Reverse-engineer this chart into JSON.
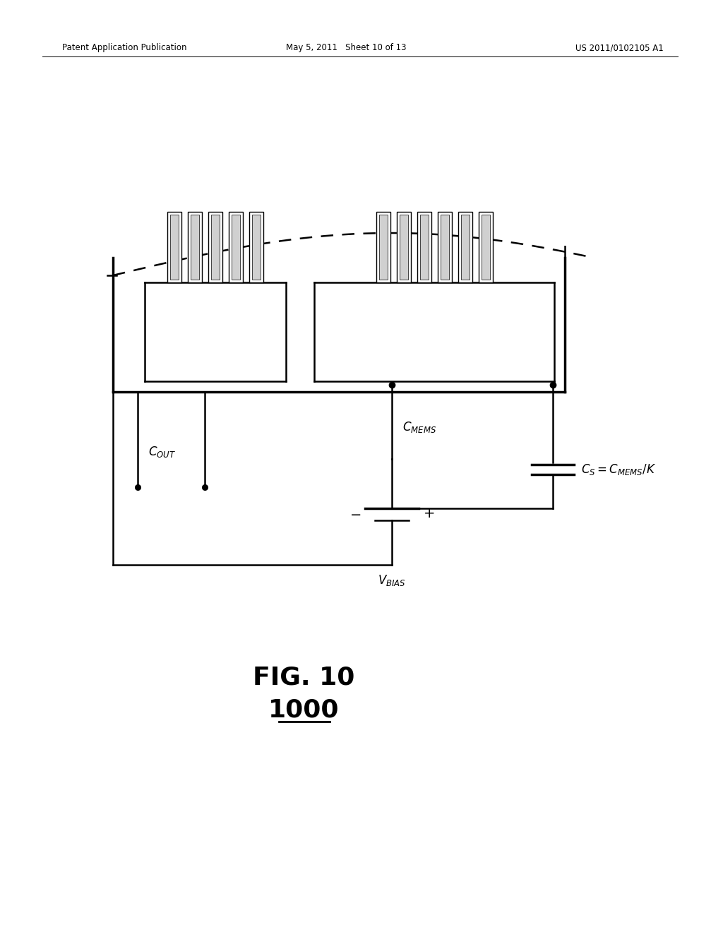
{
  "bg_color": "#ffffff",
  "header_left": "Patent Application Publication",
  "header_mid": "May 5, 2011   Sheet 10 of 13",
  "header_right": "US 2011/0102105 A1",
  "black": "#000000"
}
